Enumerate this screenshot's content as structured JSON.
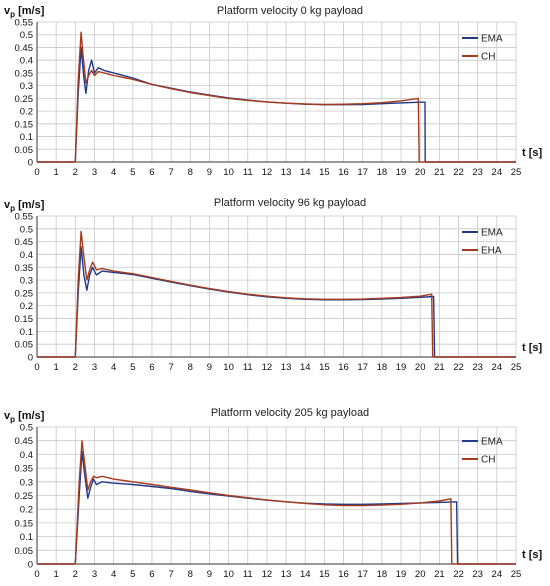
{
  "chart_data": [
    {
      "type": "line",
      "title": "Platform velocity 0 kg payload",
      "ylabel": "v",
      "ylabel_sub": "p",
      "ylabel_unit": "[m/s]",
      "xlabel": "t [s]",
      "xlim": [
        0,
        25
      ],
      "ylim": [
        0,
        0.55
      ],
      "x_ticks": [
        "0",
        "1",
        "2",
        "3",
        "4",
        "5",
        "6",
        "7",
        "8",
        "9",
        "10",
        "11",
        "12",
        "13",
        "14",
        "15",
        "16",
        "17",
        "18",
        "19",
        "20",
        "21",
        "22",
        "23",
        "24",
        "25"
      ],
      "y_ticks": [
        "0",
        "0.05",
        "0.1",
        "0.15",
        "0.2",
        "0.25",
        "0.3",
        "0.35",
        "0.4",
        "0.45",
        "0.5",
        "0.55"
      ],
      "grid": true,
      "legend_position": "top-right",
      "series": [
        {
          "name": "EMA",
          "color": "#1f3a8a",
          "x": [
            0,
            2.0,
            2.15,
            2.3,
            2.45,
            2.55,
            2.7,
            2.85,
            3.0,
            3.2,
            3.5,
            4,
            5,
            6,
            7,
            8,
            9,
            10,
            11,
            12,
            13,
            14,
            15,
            16,
            17,
            18,
            19,
            20.0,
            20.25,
            20.26,
            25
          ],
          "y": [
            0,
            0,
            0.27,
            0.45,
            0.33,
            0.27,
            0.36,
            0.4,
            0.35,
            0.37,
            0.36,
            0.35,
            0.33,
            0.305,
            0.29,
            0.275,
            0.263,
            0.252,
            0.243,
            0.236,
            0.231,
            0.227,
            0.225,
            0.225,
            0.226,
            0.229,
            0.232,
            0.235,
            0.235,
            0,
            0
          ]
        },
        {
          "name": "CH",
          "color": "#a83a1c",
          "x": [
            0,
            2.0,
            2.15,
            2.3,
            2.4,
            2.55,
            2.7,
            2.85,
            3.0,
            3.2,
            3.5,
            4,
            5,
            6,
            7,
            8,
            9,
            10,
            11,
            12,
            13,
            14,
            15,
            16,
            17,
            18,
            19,
            19.9,
            19.95,
            25
          ],
          "y": [
            0,
            0,
            0.32,
            0.51,
            0.42,
            0.31,
            0.34,
            0.36,
            0.34,
            0.355,
            0.35,
            0.34,
            0.325,
            0.305,
            0.288,
            0.273,
            0.261,
            0.25,
            0.242,
            0.236,
            0.231,
            0.228,
            0.226,
            0.227,
            0.229,
            0.233,
            0.24,
            0.25,
            0,
            0
          ]
        }
      ]
    },
    {
      "type": "line",
      "title": "Platform velocity 96 kg payload",
      "ylabel": "v",
      "ylabel_sub": "p",
      "ylabel_unit": "[m/s]",
      "xlabel": "t [s]",
      "xlim": [
        0,
        25
      ],
      "ylim": [
        0,
        0.55
      ],
      "x_ticks": [
        "0",
        "1",
        "2",
        "3",
        "4",
        "5",
        "6",
        "7",
        "8",
        "9",
        "10",
        "11",
        "12",
        "13",
        "14",
        "15",
        "16",
        "17",
        "18",
        "19",
        "20",
        "21",
        "22",
        "23",
        "24",
        "25"
      ],
      "y_ticks": [
        "0",
        "0.05",
        "0.1",
        "0.15",
        "0.2",
        "0.25",
        "0.3",
        "0.35",
        "0.4",
        "0.45",
        "0.5",
        "0.55"
      ],
      "grid": true,
      "legend_position": "top-right",
      "series": [
        {
          "name": "EMA",
          "color": "#1f3a8a",
          "x": [
            0,
            2.0,
            2.15,
            2.3,
            2.45,
            2.6,
            2.75,
            2.9,
            3.1,
            3.4,
            4,
            5,
            6,
            7,
            8,
            9,
            10,
            11,
            12,
            13,
            14,
            15,
            16,
            17,
            18,
            19,
            20,
            20.7,
            20.75,
            25
          ],
          "y": [
            0,
            0,
            0.25,
            0.43,
            0.32,
            0.26,
            0.32,
            0.35,
            0.32,
            0.335,
            0.33,
            0.322,
            0.307,
            0.292,
            0.278,
            0.265,
            0.253,
            0.243,
            0.235,
            0.229,
            0.225,
            0.223,
            0.223,
            0.224,
            0.226,
            0.229,
            0.233,
            0.236,
            0,
            0
          ]
        },
        {
          "name": "EHA",
          "color": "#a83a1c",
          "x": [
            0,
            2.0,
            2.15,
            2.3,
            2.45,
            2.6,
            2.75,
            2.9,
            3.1,
            3.4,
            4,
            5,
            6,
            7,
            8,
            9,
            10,
            11,
            12,
            13,
            14,
            15,
            16,
            17,
            18,
            19,
            20,
            20.6,
            20.65,
            25
          ],
          "y": [
            0,
            0,
            0.3,
            0.49,
            0.39,
            0.3,
            0.34,
            0.37,
            0.34,
            0.345,
            0.335,
            0.325,
            0.31,
            0.295,
            0.28,
            0.267,
            0.255,
            0.245,
            0.237,
            0.231,
            0.227,
            0.225,
            0.225,
            0.226,
            0.229,
            0.232,
            0.237,
            0.245,
            0,
            0
          ]
        }
      ]
    },
    {
      "type": "line",
      "title": "Platform velocity 205 kg payload",
      "ylabel": "v",
      "ylabel_sub": "p",
      "ylabel_unit": "[m/s]",
      "xlabel": "t [s]",
      "xlim": [
        0,
        25
      ],
      "ylim": [
        0,
        0.5
      ],
      "x_ticks": [
        "0",
        "1",
        "2",
        "3",
        "4",
        "5",
        "6",
        "7",
        "8",
        "9",
        "10",
        "11",
        "12",
        "13",
        "14",
        "15",
        "16",
        "17",
        "18",
        "19",
        "20",
        "21",
        "22",
        "23",
        "24",
        "25"
      ],
      "y_ticks": [
        "0",
        "0.05",
        "0.1",
        "0.15",
        "0.2",
        "0.25",
        "0.3",
        "0.35",
        "0.4",
        "0.45",
        "0.5"
      ],
      "grid": true,
      "legend_position": "top-right",
      "series": [
        {
          "name": "EMA",
          "color": "#1f3a8a",
          "x": [
            0,
            2.0,
            2.2,
            2.35,
            2.5,
            2.65,
            2.8,
            2.95,
            3.1,
            3.4,
            4,
            5,
            6,
            7,
            8,
            9,
            10,
            11,
            12,
            13,
            14,
            15,
            16,
            17,
            18,
            19,
            20,
            21,
            21.9,
            21.95,
            25
          ],
          "y": [
            0,
            0,
            0.25,
            0.41,
            0.32,
            0.24,
            0.28,
            0.31,
            0.29,
            0.3,
            0.295,
            0.29,
            0.283,
            0.275,
            0.265,
            0.256,
            0.248,
            0.24,
            0.233,
            0.227,
            0.222,
            0.219,
            0.218,
            0.218,
            0.219,
            0.221,
            0.223,
            0.225,
            0.227,
            0,
            0
          ]
        },
        {
          "name": "CH",
          "color": "#a83a1c",
          "x": [
            0,
            2.0,
            2.2,
            2.35,
            2.5,
            2.65,
            2.8,
            2.95,
            3.1,
            3.4,
            4,
            5,
            6,
            7,
            8,
            9,
            10,
            11,
            12,
            13,
            14,
            15,
            16,
            17,
            18,
            19,
            20,
            21,
            21.6,
            21.65,
            25
          ],
          "y": [
            0,
            0,
            0.3,
            0.45,
            0.36,
            0.27,
            0.3,
            0.32,
            0.315,
            0.32,
            0.31,
            0.3,
            0.29,
            0.28,
            0.27,
            0.26,
            0.25,
            0.242,
            0.234,
            0.227,
            0.221,
            0.216,
            0.213,
            0.213,
            0.215,
            0.218,
            0.223,
            0.23,
            0.238,
            0,
            0
          ]
        }
      ]
    }
  ]
}
